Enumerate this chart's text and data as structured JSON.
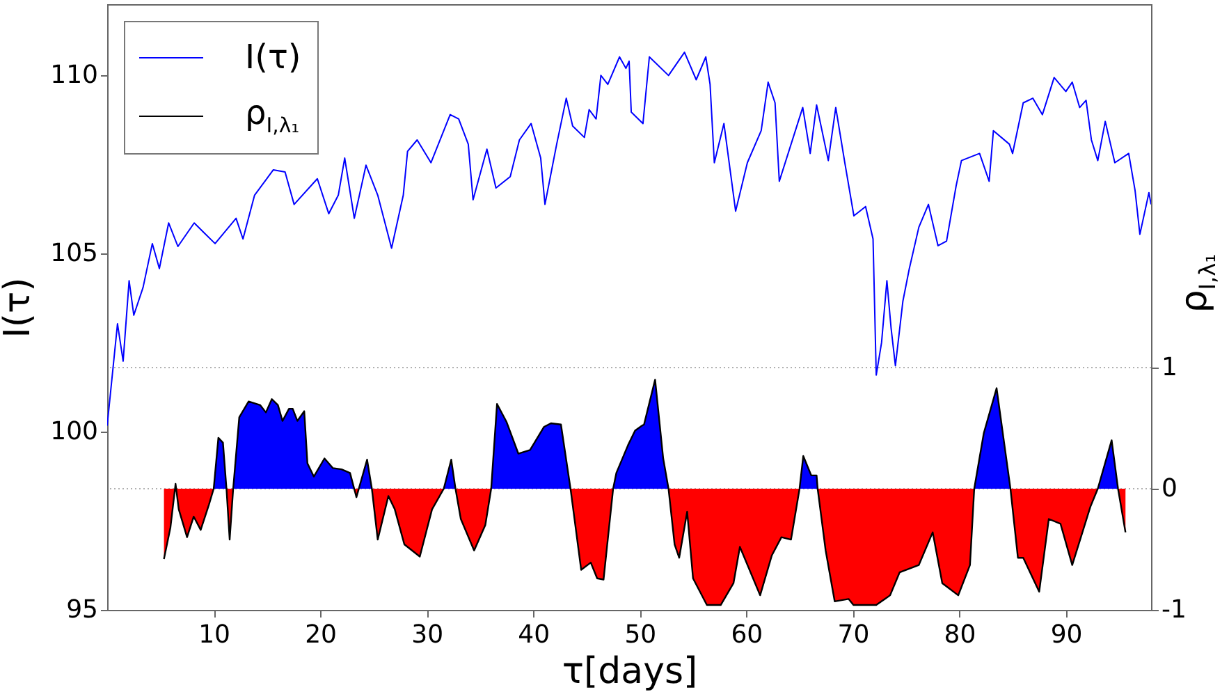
{
  "chart_data": {
    "type": "line",
    "xlabel": "τ[days]",
    "ylabel": "I(τ)",
    "y2label": "ρ$_{I,λ₁}$",
    "legend": "top left",
    "xlim": [
      0,
      98
    ],
    "xticks": [
      10,
      20,
      30,
      40,
      50,
      60,
      70,
      80,
      90
    ],
    "ylim": [
      95,
      112
    ],
    "yticks": [
      95,
      100,
      105,
      110
    ],
    "y2lim": [
      -1,
      4
    ],
    "y2ticks": [
      -1,
      0,
      1
    ],
    "ref_lines": [
      {
        "axis": "y2",
        "value": 0,
        "color": "#b0b0b0",
        "line_style": "dotted"
      },
      {
        "axis": "y2",
        "value": 1,
        "color": "#b0b0b0",
        "line_style": "dotted"
      }
    ],
    "series": [
      {
        "name": "ρ$_{I,λ₁}$",
        "type": "area",
        "axis": "y2",
        "color": "#000000",
        "colors": [
          "#ff0000",
          "#ff0000",
          "#0000ff",
          "#ff0000",
          "#ff0000",
          "#ff0000",
          "#ff0000",
          "#ff0000",
          "#0000ff",
          "#0000ff",
          "#0000ff",
          "#0000ff",
          "#ff0000",
          "#0000ff",
          "#0000ff",
          "#0000ff",
          "#0000ff",
          "#0000ff",
          "#0000ff",
          "#0000ff",
          "#0000ff",
          "#0000ff",
          "#0000ff",
          "#0000ff",
          "#0000ff",
          "#0000ff",
          "#0000ff",
          "#0000ff",
          "#0000ff",
          "#0000ff",
          "#0000ff",
          "#ff0000",
          "#0000ff",
          "#0000ff",
          "#ff0000",
          "#ff0000",
          "#ff0000",
          "#ff0000",
          "#ff0000",
          "#ff0000",
          "#0000ff",
          "#0000ff",
          "#0000ff",
          "#ff0000",
          "#ff0000",
          "#ff0000",
          "#0000ff",
          "#0000ff",
          "#0000ff",
          "#0000ff",
          "#0000ff",
          "#0000ff",
          "#0000ff",
          "#0000ff",
          "#0000ff",
          "#ff0000",
          "#ff0000",
          "#ff0000",
          "#ff0000",
          "#0000ff",
          "#0000ff",
          "#0000ff",
          "#0000ff",
          "#0000ff",
          "#0000ff",
          "#0000ff",
          "#0000ff",
          "#0000ff",
          "#ff0000",
          "#ff0000",
          "#ff0000",
          "#ff0000",
          "#ff0000",
          "#ff0000",
          "#ff0000",
          "#ff0000",
          "#ff0000",
          "#ff0000",
          "#ff0000",
          "#ff0000",
          "#0000ff",
          "#0000ff",
          "#0000ff",
          "#0000ff",
          "#0000ff",
          "#ff0000",
          "#ff0000",
          "#ff0000",
          "#ff0000",
          "#ff0000",
          "#ff0000",
          "#ff0000",
          "#ff0000",
          "#ff0000",
          "#ff0000",
          "#ff0000",
          "#ff0000",
          "#0000ff",
          "#0000ff",
          "#0000ff",
          "#0000ff",
          "#ff0000",
          "#ff0000",
          "#ff0000",
          "#ff0000",
          "#ff0000",
          "#ff0000",
          "#ff0000",
          "#0000ff",
          "#0000ff",
          "#0000ff",
          "#ff0000"
        ],
        "x": [
          5.33,
          5.94,
          6.42,
          6.72,
          7.5,
          8.12,
          8.78,
          9.56,
          10.0,
          10.44,
          10.87,
          11.2,
          11.5,
          11.83,
          12.4,
          13.28,
          14.37,
          14.9,
          15.46,
          16.03,
          16.46,
          17.07,
          17.42,
          17.86,
          18.5,
          18.8,
          19.4,
          20.4,
          21.2,
          22.0,
          22.8,
          23.4,
          24.4,
          24.85,
          25.4,
          26.4,
          27.0,
          27.9,
          29.35,
          30.5,
          31.6,
          32.3,
          32.7,
          33.2,
          34.45,
          35.5,
          36.05,
          36.6,
          37.5,
          38.6,
          39.7,
          41.0,
          41.66,
          42.6,
          43.5,
          44.5,
          45.4,
          46.0,
          46.6,
          47.5,
          47.8,
          48.9,
          49.56,
          50.2,
          50.4,
          51.44,
          52.2,
          52.7,
          53.27,
          53.7,
          54.45,
          55.0,
          56.3,
          57.6,
          58.8,
          59.4,
          61.3,
          62.4,
          63.3,
          64.2,
          65.0,
          65.35,
          66.1,
          66.6,
          66.7,
          67.45,
          68.3,
          69.6,
          70.06,
          72.2,
          73.5,
          74.4,
          76.2,
          77.5,
          78.4,
          79.9,
          81.0,
          81.4,
          82.3,
          83.5,
          84.8,
          85.5,
          86.0,
          87.5,
          88.4,
          89.5,
          90.6,
          92.3,
          93.0,
          94.3,
          94.9,
          95.6
        ],
        "values": [
          -0.58,
          -0.32,
          0.04,
          -0.17,
          -0.4,
          -0.23,
          -0.34,
          -0.13,
          0,
          0.42,
          0.38,
          0,
          -0.42,
          0,
          0.59,
          0.72,
          0.69,
          0.63,
          0.74,
          0.69,
          0.56,
          0.66,
          0.66,
          0.56,
          0.64,
          0.21,
          0.1,
          0.25,
          0.17,
          0.16,
          0.13,
          -0.07,
          0.24,
          0,
          -0.42,
          -0.06,
          -0.17,
          -0.46,
          -0.56,
          -0.17,
          0,
          0.24,
          0,
          -0.25,
          -0.51,
          -0.3,
          0,
          0.7,
          0.55,
          0.29,
          0.32,
          0.51,
          0.54,
          0.53,
          0,
          -0.67,
          -0.61,
          -0.74,
          -0.75,
          0,
          0.13,
          0.36,
          0.48,
          0.52,
          0.53,
          0.9,
          0.25,
          0,
          -0.46,
          -0.57,
          -0.19,
          -0.74,
          -0.96,
          -0.96,
          -0.78,
          -0.48,
          -0.88,
          -0.55,
          -0.4,
          -0.42,
          0,
          0.27,
          0.11,
          0.11,
          0,
          -0.51,
          -0.93,
          -0.91,
          -0.96,
          -0.96,
          -0.88,
          -0.69,
          -0.63,
          -0.36,
          -0.78,
          -0.88,
          -0.63,
          0,
          0.46,
          0.83,
          0,
          -0.57,
          -0.57,
          -0.85,
          -0.25,
          -0.29,
          -0.63,
          -0.15,
          0,
          0.4,
          0,
          -0.36
        ]
      },
      {
        "name": "I(τ)",
        "type": "line",
        "color": "#0000ff",
        "x": [
          0,
          0.97,
          1.5,
          2.06,
          2.5,
          3.37,
          4.24,
          4.9,
          5.77,
          6.64,
          8.17,
          9.04,
          10.13,
          12.1,
          12.75,
          13.84,
          15.6,
          16.7,
          17.55,
          19.73,
          20.8,
          21.7,
          22.3,
          23.2,
          24.3,
          25.4,
          26.7,
          27.8,
          28.2,
          29.1,
          30.4,
          32.2,
          33.0,
          33.9,
          34.35,
          35.65,
          36.5,
          37.84,
          38.7,
          39.8,
          40.7,
          41.1,
          42.2,
          43.1,
          43.7,
          44.8,
          45.25,
          45.9,
          46.35,
          47.0,
          48.1,
          48.7,
          49.0,
          49.2,
          50.3,
          50.9,
          52.7,
          54.2,
          55.3,
          56.2,
          56.6,
          57.0,
          57.9,
          59.0,
          60.1,
          61.4,
          62.05,
          62.7,
          63.1,
          65.3,
          66.0,
          66.6,
          67.7,
          68.4,
          69.25,
          70.1,
          71.2,
          71.9,
          72.2,
          72.7,
          73.2,
          73.6,
          74.0,
          74.7,
          75.3,
          76.2,
          77.1,
          78.0,
          78.8,
          79.7,
          80.2,
          81.9,
          82.8,
          83.2,
          84.7,
          85.0,
          86.0,
          86.9,
          87.8,
          88.9,
          90.0,
          90.6,
          91.3,
          91.9,
          92.4,
          93.0,
          93.7,
          94.6,
          95.9,
          96.5,
          96.95,
          97.8,
          98.0
        ],
        "values": [
          100.17,
          103.03,
          101.98,
          104.24,
          103.27,
          104.05,
          105.28,
          104.58,
          105.86,
          105.2,
          105.86,
          105.6,
          105.28,
          105.99,
          105.41,
          106.64,
          107.35,
          107.29,
          106.38,
          107.1,
          106.12,
          106.64,
          107.68,
          105.99,
          107.48,
          106.64,
          105.15,
          106.64,
          107.87,
          108.19,
          107.55,
          108.9,
          108.78,
          108.07,
          106.51,
          107.93,
          106.84,
          107.16,
          108.19,
          108.65,
          107.68,
          106.38,
          108.07,
          109.36,
          108.58,
          108.26,
          109.04,
          108.78,
          110.0,
          109.75,
          110.52,
          110.2,
          110.4,
          108.97,
          108.65,
          110.52,
          110.0,
          110.65,
          109.88,
          110.52,
          109.75,
          107.55,
          108.65,
          106.19,
          107.55,
          108.45,
          109.81,
          109.23,
          107.03,
          109.1,
          107.81,
          109.17,
          107.61,
          109.1,
          107.55,
          106.06,
          106.32,
          105.41,
          101.59,
          102.5,
          104.24,
          102.89,
          101.85,
          103.66,
          104.57,
          105.74,
          106.38,
          105.22,
          105.35,
          106.9,
          107.61,
          107.81,
          107.03,
          108.45,
          108.07,
          107.81,
          109.23,
          109.36,
          108.9,
          109.94,
          109.55,
          109.81,
          109.1,
          109.3,
          108.19,
          107.61,
          108.71,
          107.55,
          107.81,
          106.77,
          105.54,
          106.71,
          106.38
        ]
      }
    ]
  }
}
